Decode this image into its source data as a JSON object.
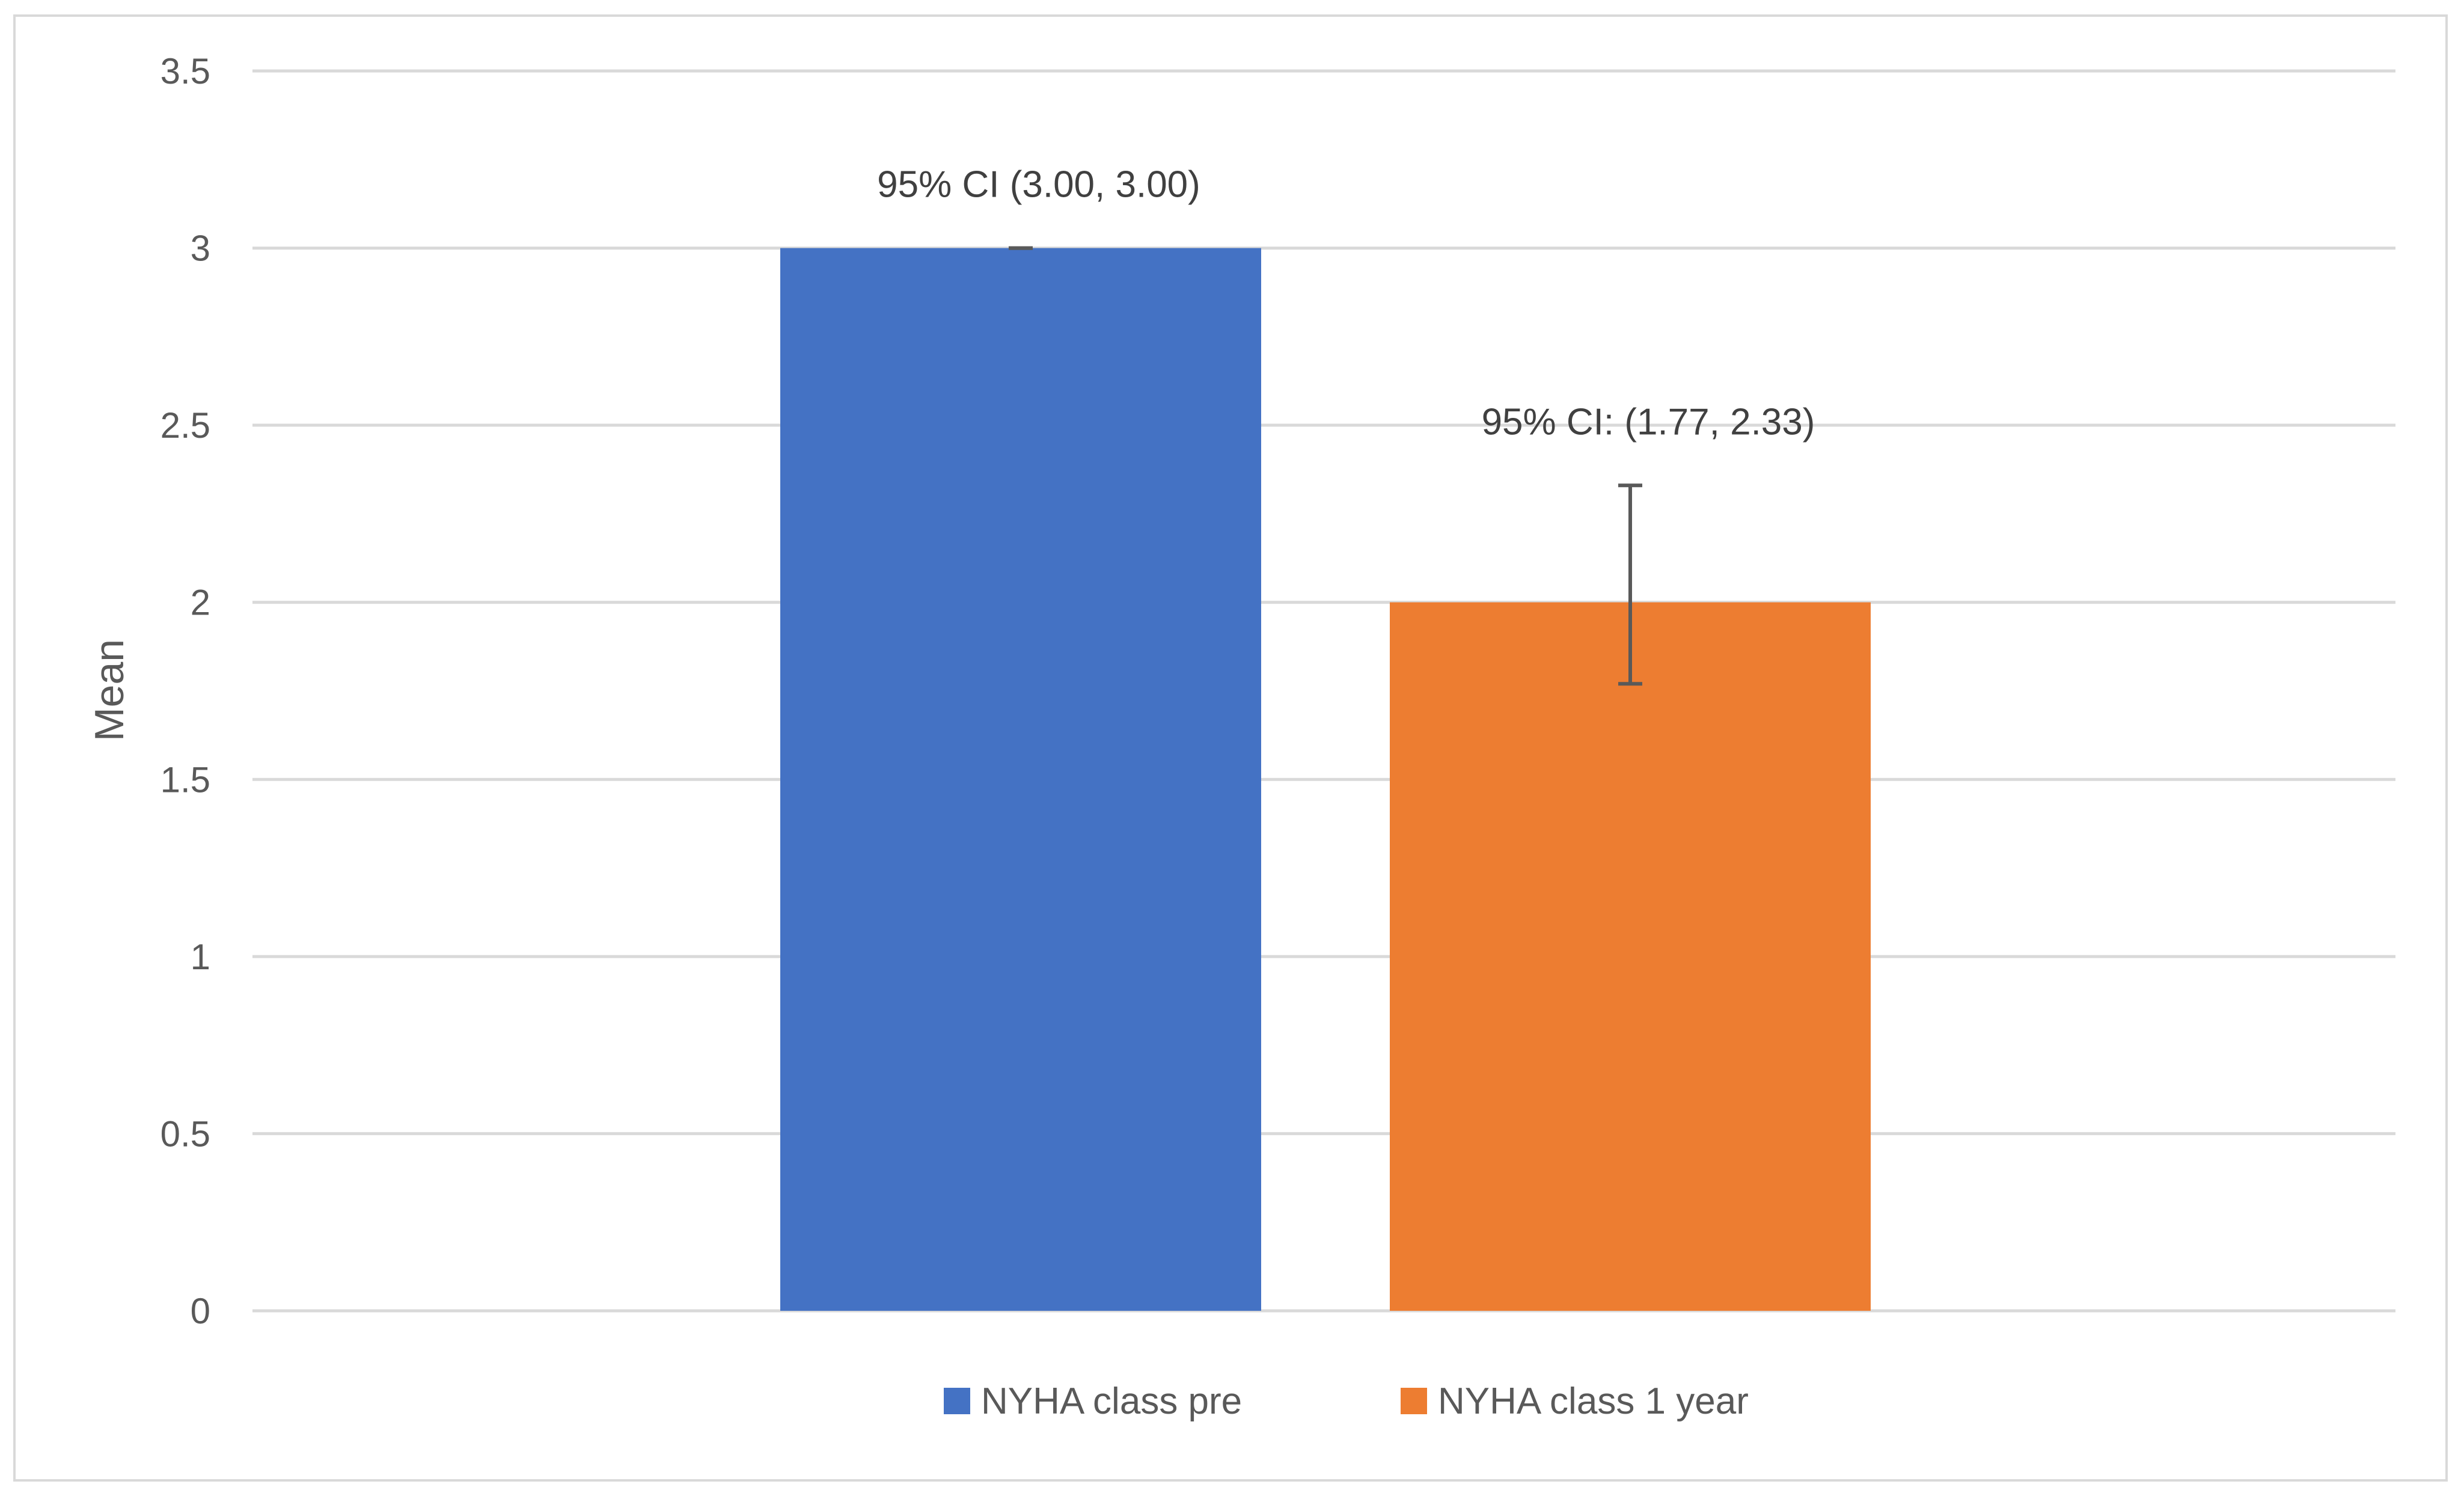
{
  "chart_data": {
    "type": "bar",
    "title": "",
    "xlabel": "",
    "ylabel": "Mean",
    "ylim": [
      0,
      3.5
    ],
    "yticks": [
      "0",
      "0.5",
      "1",
      "1.5",
      "2",
      "2.5",
      "3",
      "3.5"
    ],
    "grid": true,
    "legend_position": "bottom",
    "series": [
      {
        "name": "NYHA class pre",
        "value": 3.0,
        "ci": [
          3.0,
          3.0
        ],
        "label": "95% CI (3.00, 3.00)",
        "color": "#4472c4"
      },
      {
        "name": "NYHA class 1 year",
        "value": 2.0,
        "ci": [
          1.77,
          2.33
        ],
        "label": "95% CI: (1.77, 2.33)",
        "color": "#ed7d31"
      }
    ]
  }
}
